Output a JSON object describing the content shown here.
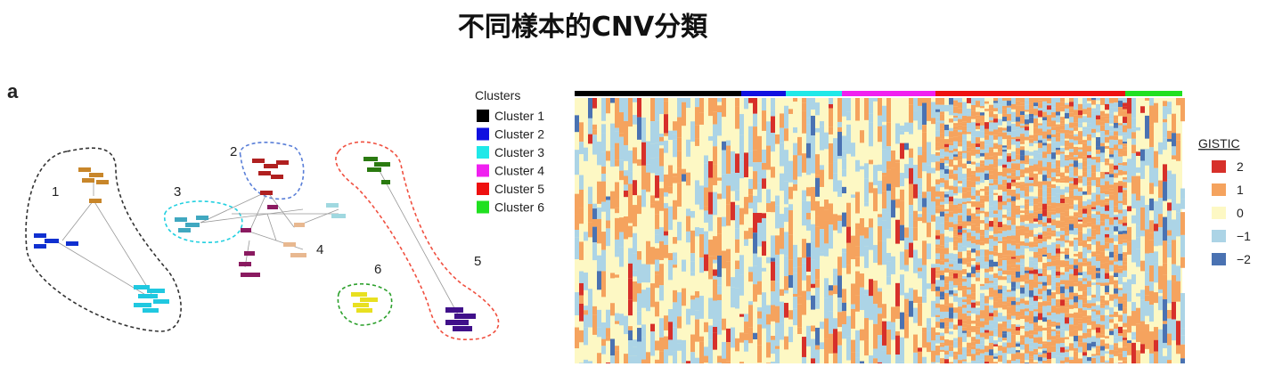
{
  "title": "不同樣本的CNV分類",
  "panel_label": "a",
  "network": {
    "cluster_labels": [
      "1",
      "2",
      "3",
      "4",
      "5",
      "6"
    ]
  },
  "heatmap": {
    "legend_title": "Clusters",
    "clusters": [
      {
        "name": "Cluster 1",
        "color": "#000000"
      },
      {
        "name": "Cluster 2",
        "color": "#1010e0"
      },
      {
        "name": "Cluster 3",
        "color": "#20e8e8"
      },
      {
        "name": "Cluster 4",
        "color": "#f020f0"
      },
      {
        "name": "Cluster 5",
        "color": "#ee1010"
      },
      {
        "name": "Cluster 6",
        "color": "#20e020"
      }
    ],
    "gistic_title": "GISTIC",
    "gistic_levels": [
      {
        "label": "2",
        "color": "#d7302a"
      },
      {
        "label": "1",
        "color": "#f5a35e"
      },
      {
        "label": "0",
        "color": "#fdf8c4"
      },
      {
        "label": "−1",
        "color": "#acd4e6"
      },
      {
        "label": "−2",
        "color": "#4a72b2"
      }
    ]
  }
}
